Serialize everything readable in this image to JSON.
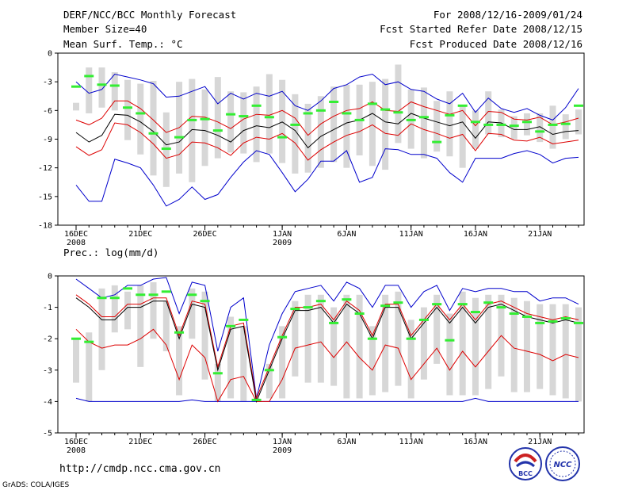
{
  "header": {
    "title": "DERF/NCC/BCC Monthly Forecast",
    "member_size": "Member Size=40",
    "variable": "Mean Surf. Temp.: °C",
    "period": "For 2008/12/16-2009/01/24",
    "fcst_started": "Fcst Started Refer Date 2008/12/15",
    "fcst_produced": "Fcst Produced Date 2008/12/16"
  },
  "footer": {
    "url": "http://cmdp.ncc.cma.gov.cn",
    "credit": "GrADS: COLA/IGES",
    "logo_bcc": "BCC",
    "logo_ncc": "NCC"
  },
  "colors": {
    "box": "#d7d7d7",
    "obs": "#33ee33",
    "mean": "#000000",
    "spread": "#dd0000",
    "extreme": "#0000cc"
  },
  "chart_data": [
    {
      "type": "box-ensemble",
      "title": "Mean Surf. Temp.: °C",
      "ylim": [
        -18,
        0
      ],
      "yticks": [
        0,
        -3,
        -6,
        -9,
        -12,
        -15,
        -18
      ],
      "xtick_labels": [
        "16DEC",
        "21DEC",
        "26DEC",
        "1JAN",
        "6JAN",
        "11JAN",
        "16JAN",
        "21JAN"
      ],
      "xtick_days": [
        1,
        6,
        11,
        17,
        22,
        27,
        32,
        37
      ],
      "year_labels": [
        {
          "day": 1,
          "text": "2008"
        },
        {
          "day": 17,
          "text": "2009"
        }
      ],
      "days": 40,
      "mean": [
        -8.3,
        -9.3,
        -8.6,
        -6.4,
        -6.5,
        -7.2,
        -8.2,
        -9.6,
        -9.3,
        -8.0,
        -8.1,
        -8.6,
        -9.3,
        -8.1,
        -7.6,
        -7.8,
        -7.2,
        -8.1,
        -9.9,
        -8.7,
        -8.0,
        -7.3,
        -7.0,
        -6.3,
        -7.2,
        -7.4,
        -6.3,
        -6.8,
        -7.2,
        -7.6,
        -7.2,
        -8.9,
        -7.2,
        -7.3,
        -8.0,
        -8.0,
        -7.7,
        -8.5,
        -8.2,
        -8.1
      ],
      "upper": [
        -7.0,
        -7.5,
        -6.8,
        -5.0,
        -5.0,
        -5.8,
        -7.0,
        -8.3,
        -7.8,
        -6.6,
        -6.7,
        -7.2,
        -7.9,
        -6.9,
        -6.4,
        -6.5,
        -6.0,
        -6.8,
        -8.6,
        -7.4,
        -6.6,
        -6.0,
        -5.8,
        -5.1,
        -6.0,
        -6.1,
        -5.1,
        -5.6,
        -6.0,
        -6.4,
        -6.0,
        -7.6,
        -6.1,
        -6.2,
        -6.9,
        -7.0,
        -6.7,
        -7.5,
        -7.2,
        -6.8
      ],
      "lower": [
        -9.8,
        -10.7,
        -10.1,
        -7.3,
        -7.5,
        -8.3,
        -9.5,
        -11.0,
        -10.6,
        -9.3,
        -9.4,
        -9.9,
        -10.7,
        -9.4,
        -8.8,
        -9.0,
        -8.4,
        -9.4,
        -11.2,
        -10.1,
        -9.3,
        -8.6,
        -8.2,
        -7.5,
        -8.4,
        -8.6,
        -7.4,
        -8.0,
        -8.4,
        -8.9,
        -8.5,
        -10.2,
        -8.4,
        -8.5,
        -9.1,
        -9.2,
        -8.8,
        -9.5,
        -9.3,
        -9.1
      ],
      "maximum": [
        -3.0,
        -4.2,
        -3.8,
        -2.2,
        -2.5,
        -2.8,
        -3.2,
        -4.6,
        -4.5,
        -4.0,
        -3.5,
        -5.3,
        -4.2,
        -4.8,
        -4.2,
        -4.5,
        -4.0,
        -5.5,
        -6.0,
        -5.0,
        -3.7,
        -3.3,
        -2.5,
        -2.2,
        -3.3,
        -3.0,
        -3.8,
        -4.0,
        -4.8,
        -5.3,
        -4.2,
        -6.2,
        -4.7,
        -5.8,
        -6.2,
        -5.8,
        -6.5,
        -7.0,
        -5.7,
        -3.7
      ],
      "minimum": [
        -13.8,
        -15.5,
        -15.5,
        -11.1,
        -11.5,
        -12.0,
        -13.8,
        -16.0,
        -15.3,
        -14.0,
        -15.3,
        -14.8,
        -13.0,
        -11.4,
        -10.2,
        -10.6,
        -12.5,
        -14.5,
        -13.2,
        -11.3,
        -11.3,
        -10.2,
        -13.5,
        -13.0,
        -10.0,
        -10.1,
        -10.6,
        -10.6,
        -11.0,
        -12.5,
        -13.5,
        -11.0,
        -11.0,
        -11.0,
        -10.5,
        -10.2,
        -10.6,
        -11.5,
        -11.0,
        -10.9
      ],
      "box_top": [
        -5.2,
        -1.5,
        -1.5,
        -2.0,
        -2.8,
        -3.2,
        -2.9,
        -6.2,
        -3.0,
        -2.7,
        -3.8,
        -2.5,
        -4.0,
        -4.1,
        -3.5,
        -2.2,
        -2.8,
        -4.3,
        -5.3,
        -4.5,
        -3.5,
        -3.3,
        -3.3,
        -3.0,
        -2.7,
        -1.2,
        -3.8,
        -3.6,
        -5.0,
        -4.0,
        -5.5,
        -6.0,
        -4.0,
        -5.9,
        -6.6,
        -6.3,
        -6.3,
        -5.5,
        -6.4,
        -5.9
      ],
      "box_bottom": [
        -6.0,
        -6.3,
        -5.7,
        -6.0,
        -9.1,
        -10.6,
        -12.8,
        -14.0,
        -12.6,
        -13.5,
        -11.8,
        -11.0,
        -10.4,
        -10.5,
        -11.4,
        -10.5,
        -11.5,
        -12.6,
        -12.5,
        -12.0,
        -11.4,
        -12.0,
        -10.7,
        -11.8,
        -12.2,
        -9.4,
        -10.0,
        -11.0,
        -10.3,
        -10.8,
        -12.0,
        -10.0,
        -8.5,
        -8.8,
        -9.0,
        -8.6,
        -9.3,
        -10.0,
        -9.0,
        -8.5
      ],
      "obs": [
        -3.5,
        -2.4,
        -3.3,
        -3.4,
        -5.7,
        -6.3,
        -8.4,
        -10.0,
        -8.8,
        -7.0,
        -6.9,
        -8.1,
        -6.4,
        -6.6,
        -5.5,
        -6.7,
        -8.8,
        -7.5,
        -6.3,
        -6.0,
        -5.1,
        -6.3,
        -7.0,
        -5.3,
        -5.9,
        -6.2,
        -7.0,
        -6.7,
        -9.3,
        -6.5,
        -5.5,
        -7.2,
        -7.5,
        -7.5,
        -7.6,
        -7.2,
        -8.2,
        -7.5,
        -7.4,
        -5.5
      ]
    },
    {
      "type": "box-ensemble",
      "title": "Prec.: log(mm/d)",
      "ylim": [
        -5,
        0
      ],
      "yticks": [
        0,
        -1,
        -2,
        -3,
        -4,
        -5
      ],
      "xtick_labels": [
        "16DEC",
        "21DEC",
        "26DEC",
        "1JAN",
        "6JAN",
        "11JAN",
        "16JAN",
        "21JAN"
      ],
      "xtick_days": [
        1,
        6,
        11,
        17,
        22,
        27,
        32,
        37
      ],
      "year_labels": [
        {
          "day": 1,
          "text": "2008"
        },
        {
          "day": 17,
          "text": "2009"
        }
      ],
      "days": 40,
      "mean": [
        -0.7,
        -1.0,
        -1.4,
        -1.4,
        -1.0,
        -1.0,
        -0.8,
        -0.8,
        -2.0,
        -0.9,
        -1.0,
        -3.0,
        -1.7,
        -1.6,
        -4.0,
        -3.0,
        -2.0,
        -1.1,
        -1.1,
        -1.0,
        -1.5,
        -0.9,
        -1.2,
        -2.0,
        -1.0,
        -1.0,
        -2.0,
        -1.5,
        -1.0,
        -1.5,
        -1.0,
        -1.5,
        -1.0,
        -0.9,
        -1.1,
        -1.3,
        -1.4,
        -1.5,
        -1.4,
        -1.5
      ],
      "upper": [
        -0.6,
        -0.9,
        -1.3,
        -1.3,
        -0.9,
        -0.9,
        -0.7,
        -0.7,
        -1.9,
        -0.8,
        -0.9,
        -2.9,
        -1.6,
        -1.5,
        -3.9,
        -2.9,
        -1.9,
        -1.0,
        -1.0,
        -0.9,
        -1.4,
        -0.8,
        -1.1,
        -1.9,
        -0.9,
        -0.9,
        -1.9,
        -1.4,
        -0.9,
        -1.4,
        -0.9,
        -1.4,
        -0.9,
        -0.8,
        -1.0,
        -1.2,
        -1.3,
        -1.4,
        -1.3,
        -1.4
      ],
      "lower": [
        -1.7,
        -2.1,
        -2.3,
        -2.2,
        -2.2,
        -2.0,
        -1.7,
        -2.2,
        -3.3,
        -2.2,
        -2.6,
        -4.0,
        -3.3,
        -3.2,
        -4.0,
        -4.0,
        -3.3,
        -2.3,
        -2.2,
        -2.1,
        -2.6,
        -2.1,
        -2.6,
        -3.0,
        -2.2,
        -2.3,
        -3.3,
        -2.8,
        -2.3,
        -3.0,
        -2.4,
        -2.9,
        -2.4,
        -1.9,
        -2.3,
        -2.4,
        -2.5,
        -2.7,
        -2.5,
        -2.6
      ],
      "maximum": [
        -0.1,
        -0.4,
        -0.7,
        -0.6,
        -0.3,
        -0.3,
        -0.1,
        -0.05,
        -1.2,
        -0.2,
        -0.3,
        -2.4,
        -1.0,
        -0.7,
        -3.9,
        -2.2,
        -1.2,
        -0.5,
        -0.4,
        -0.3,
        -0.8,
        -0.2,
        -0.4,
        -1.0,
        -0.3,
        -0.3,
        -1.0,
        -0.5,
        -0.3,
        -1.1,
        -0.4,
        -0.5,
        -0.4,
        -0.4,
        -0.5,
        -0.5,
        -0.8,
        -0.7,
        -0.7,
        -0.9
      ],
      "minimum": [
        -3.9,
        -4.0,
        -4.0,
        -4.0,
        -4.0,
        -4.0,
        -4.0,
        -4.0,
        -4.0,
        -3.95,
        -4.0,
        -4.0,
        -4.0,
        -4.0,
        -4.0,
        -4.0,
        -4.0,
        -4.0,
        -4.0,
        -4.0,
        -4.0,
        -4.0,
        -4.0,
        -4.0,
        -4.0,
        -4.0,
        -4.0,
        -4.0,
        -4.0,
        -4.0,
        -4.0,
        -3.9,
        -4.0,
        -4.0,
        -4.0,
        -4.0,
        -4.0,
        -4.0,
        -4.0,
        -4.0
      ],
      "box_top": [
        -2.0,
        -1.8,
        -0.4,
        -0.3,
        -0.5,
        -0.3,
        -0.2,
        -0.8,
        -1.6,
        -0.4,
        -0.5,
        -2.8,
        -1.3,
        -1.6,
        -3.9,
        -2.8,
        -1.6,
        -0.8,
        -0.6,
        -0.6,
        -1.0,
        -0.6,
        -0.6,
        -1.6,
        -0.6,
        -0.5,
        -1.4,
        -1.0,
        -0.6,
        -1.2,
        -0.5,
        -0.7,
        -0.6,
        -0.6,
        -0.7,
        -0.8,
        -0.9,
        -0.9,
        -0.9,
        -1.0
      ],
      "box_bottom": [
        -3.4,
        -4.0,
        -3.0,
        -1.8,
        -1.7,
        -2.9,
        -2.0,
        -2.4,
        -3.8,
        -2.0,
        -3.3,
        -4.0,
        -3.9,
        -4.0,
        -4.0,
        -3.9,
        -3.9,
        -3.2,
        -3.4,
        -3.4,
        -3.5,
        -3.9,
        -3.9,
        -3.8,
        -3.7,
        -3.5,
        -3.9,
        -3.3,
        -2.8,
        -3.8,
        -3.8,
        -3.8,
        -3.6,
        -3.2,
        -3.7,
        -3.7,
        -3.6,
        -3.8,
        -3.9,
        -4.0
      ],
      "obs": [
        -2.0,
        -2.1,
        -0.7,
        -0.7,
        -0.4,
        -0.6,
        -0.6,
        -0.5,
        -1.8,
        -0.6,
        -0.8,
        -3.1,
        -1.6,
        -1.4,
        -3.95,
        -3.0,
        -1.95,
        -1.05,
        -1.0,
        -0.8,
        -1.5,
        -0.75,
        -1.2,
        -2.0,
        -0.95,
        -0.85,
        -2.0,
        -1.4,
        -0.9,
        -2.05,
        -0.9,
        -1.15,
        -0.85,
        -1.0,
        -1.2,
        -1.3,
        -1.5,
        -1.45,
        -1.35,
        -1.5
      ]
    }
  ]
}
